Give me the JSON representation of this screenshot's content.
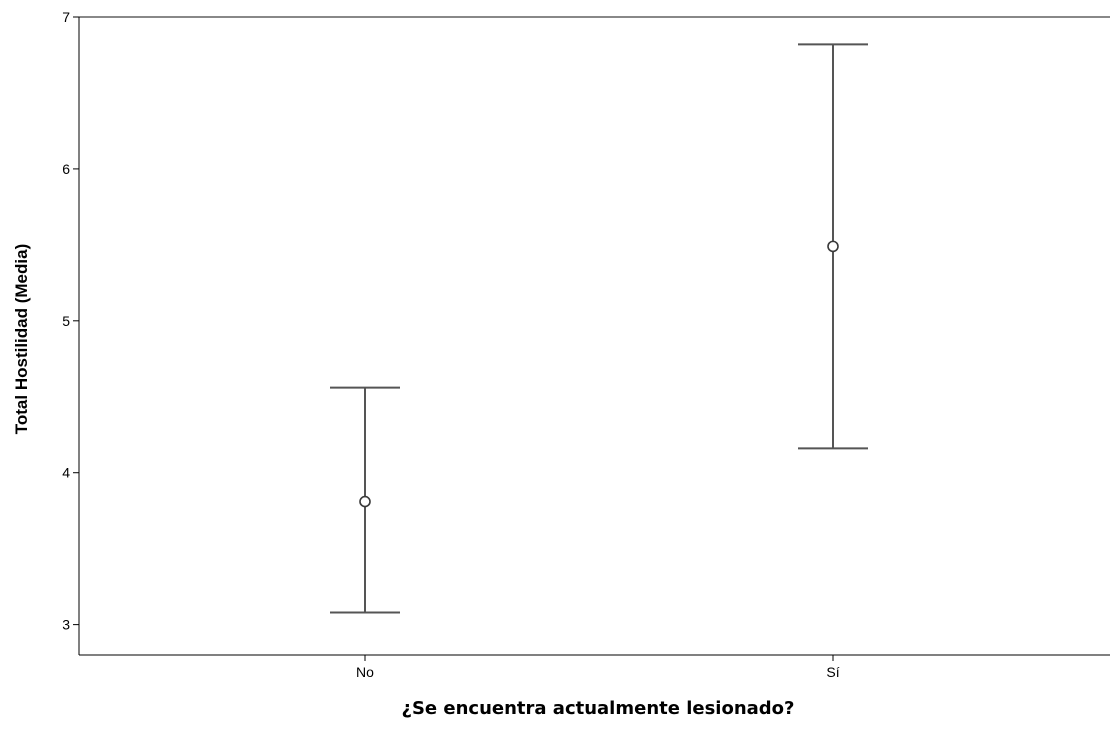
{
  "chart_data": {
    "type": "errorbar",
    "categories": [
      "No",
      "Sí"
    ],
    "series": [
      {
        "means": [
          3.81,
          5.49
        ],
        "lower": [
          3.08,
          4.16
        ],
        "upper": [
          4.56,
          6.82
        ]
      }
    ],
    "xlabel": "¿Se encuentra actualmente lesionado?",
    "ylabel": "Total Hostilidad (Media)",
    "ylim": [
      2.8,
      7.0
    ],
    "yticks": [
      3,
      4,
      5,
      6,
      7
    ],
    "grid": false,
    "colors": {
      "line": "#555555",
      "marker": "#3a3a3a",
      "text": "#000000"
    }
  }
}
